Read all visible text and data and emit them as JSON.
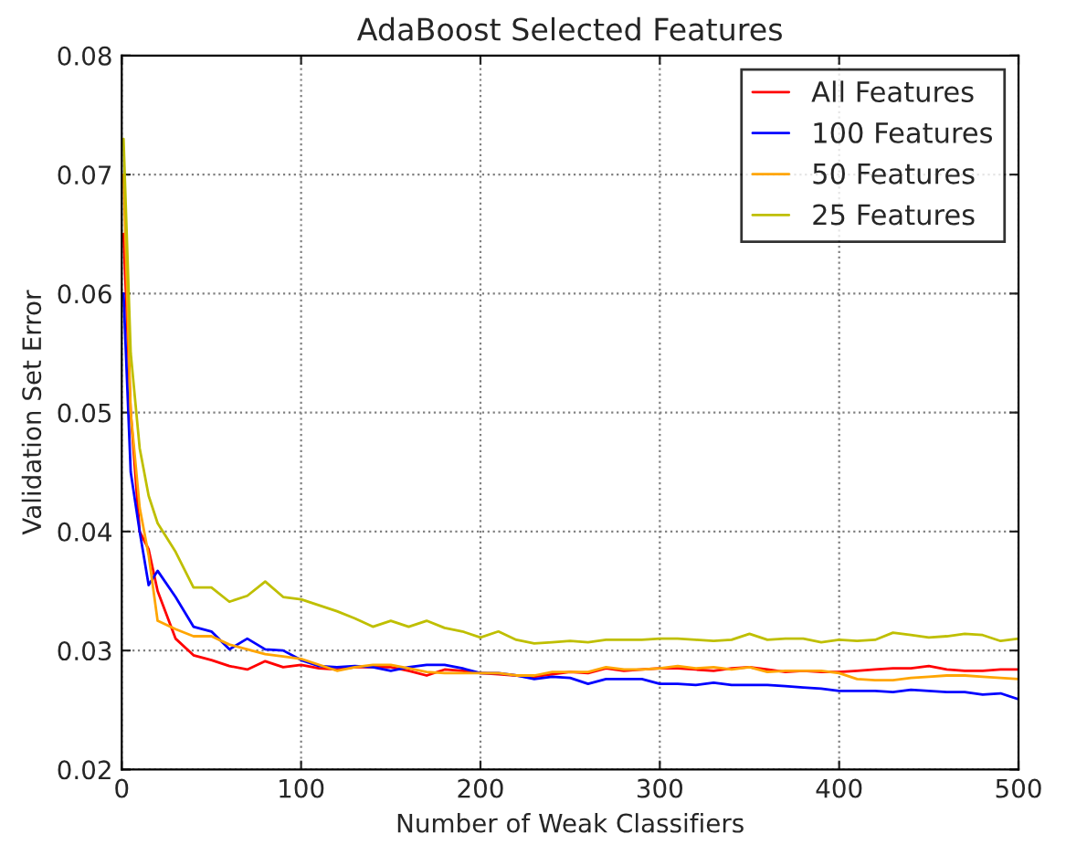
{
  "chart_data": {
    "type": "line",
    "title": "AdaBoost Selected Features",
    "xlabel": "Number of Weak Classifiers",
    "ylabel": "Validation Set Error",
    "x": [
      1,
      5,
      10,
      15,
      20,
      30,
      40,
      50,
      60,
      70,
      80,
      90,
      100,
      110,
      120,
      130,
      140,
      150,
      160,
      170,
      180,
      190,
      200,
      210,
      220,
      230,
      240,
      250,
      260,
      270,
      280,
      290,
      300,
      310,
      320,
      330,
      340,
      350,
      360,
      370,
      380,
      390,
      400,
      410,
      420,
      430,
      440,
      450,
      460,
      470,
      480,
      490,
      500
    ],
    "series": [
      {
        "name": "All Features",
        "color": "#ff0000",
        "values": [
          0.065,
          0.05,
          0.04,
          0.0385,
          0.035,
          0.031,
          0.0296,
          0.0292,
          0.0287,
          0.0284,
          0.0291,
          0.0286,
          0.0288,
          0.0285,
          0.0284,
          0.0286,
          0.0286,
          0.0286,
          0.0283,
          0.0279,
          0.0284,
          0.0283,
          0.0281,
          0.028,
          0.0279,
          0.0278,
          0.028,
          0.0282,
          0.0281,
          0.0285,
          0.0283,
          0.0284,
          0.0285,
          0.0285,
          0.0284,
          0.0283,
          0.0285,
          0.0286,
          0.0284,
          0.0282,
          0.0283,
          0.0282,
          0.0282,
          0.0283,
          0.0284,
          0.0285,
          0.0285,
          0.0287,
          0.0284,
          0.0283,
          0.0283,
          0.0284,
          0.0284
        ]
      },
      {
        "name": "100 Features",
        "color": "#0000ff",
        "values": [
          0.06,
          0.045,
          0.04,
          0.0355,
          0.0367,
          0.0345,
          0.032,
          0.0316,
          0.0301,
          0.031,
          0.0301,
          0.03,
          0.0292,
          0.0287,
          0.0286,
          0.0287,
          0.0286,
          0.0283,
          0.0286,
          0.0288,
          0.0288,
          0.0285,
          0.0281,
          0.0281,
          0.0279,
          0.0276,
          0.0278,
          0.0277,
          0.0272,
          0.0276,
          0.0276,
          0.0276,
          0.0272,
          0.0272,
          0.0271,
          0.0273,
          0.0271,
          0.0271,
          0.0271,
          0.027,
          0.0269,
          0.0268,
          0.0266,
          0.0266,
          0.0266,
          0.0265,
          0.0267,
          0.0266,
          0.0265,
          0.0265,
          0.0263,
          0.0264,
          0.0259
        ]
      },
      {
        "name": "50 Features",
        "color": "#ffa500",
        "values": [
          0.07,
          0.05,
          0.042,
          0.038,
          0.0325,
          0.0318,
          0.0312,
          0.0312,
          0.0305,
          0.0301,
          0.0297,
          0.0295,
          0.0293,
          0.0288,
          0.0283,
          0.0286,
          0.0288,
          0.0288,
          0.0285,
          0.0282,
          0.0281,
          0.0281,
          0.0281,
          0.0281,
          0.0279,
          0.0279,
          0.0282,
          0.0282,
          0.0282,
          0.0286,
          0.0284,
          0.0284,
          0.0285,
          0.0287,
          0.0285,
          0.0286,
          0.0284,
          0.0286,
          0.0282,
          0.0283,
          0.0283,
          0.0283,
          0.0281,
          0.0276,
          0.0275,
          0.0275,
          0.0277,
          0.0278,
          0.0279,
          0.0279,
          0.0278,
          0.0277,
          0.0276
        ]
      },
      {
        "name": "25 Features",
        "color": "#bfbf00",
        "values": [
          0.073,
          0.055,
          0.047,
          0.043,
          0.0407,
          0.0383,
          0.0353,
          0.0353,
          0.0341,
          0.0346,
          0.0358,
          0.0345,
          0.0343,
          0.0338,
          0.0333,
          0.0327,
          0.032,
          0.0325,
          0.032,
          0.0325,
          0.0319,
          0.0316,
          0.0311,
          0.0316,
          0.0309,
          0.0306,
          0.0307,
          0.0308,
          0.0307,
          0.0309,
          0.0309,
          0.0309,
          0.031,
          0.031,
          0.0309,
          0.0308,
          0.0309,
          0.0314,
          0.0309,
          0.031,
          0.031,
          0.0307,
          0.0309,
          0.0308,
          0.0309,
          0.0315,
          0.0313,
          0.0311,
          0.0312,
          0.0314,
          0.0313,
          0.0308,
          0.031
        ]
      }
    ],
    "xlim": [
      0,
      500
    ],
    "xticks": [
      0,
      100,
      200,
      300,
      400,
      500
    ],
    "ylim": [
      0.02,
      0.08
    ],
    "yticks": [
      {
        "value": 0.02,
        "label": "0.02"
      },
      {
        "value": 0.03,
        "label": "0.03"
      },
      {
        "value": 0.04,
        "label": "0.04"
      },
      {
        "value": 0.05,
        "label": "0.05"
      },
      {
        "value": 0.06,
        "label": "0.06"
      },
      {
        "value": 0.07,
        "label": "0.07"
      },
      {
        "value": 0.08,
        "label": "0.08"
      }
    ],
    "grid": true,
    "legend": "top right",
    "line_style": "solid",
    "marker": "none"
  }
}
